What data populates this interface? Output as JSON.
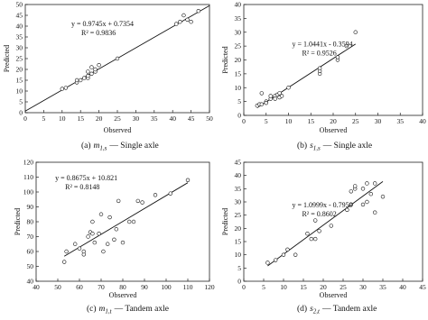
{
  "chart_data": [
    {
      "type": "scatter",
      "xlabel": "Observed",
      "ylabel": "Predicted",
      "caption": {
        "label": "(a)",
        "symbol": "m",
        "subscript": "1,s",
        "text": "— Single axle"
      },
      "equation": "y = 0.9745x + 0.7354",
      "r2": "R² = 0.9836",
      "fit": {
        "slope": 0.9745,
        "intercept": 0.7354
      },
      "x": [
        10,
        11,
        14,
        14,
        15,
        16,
        17,
        17,
        17,
        18,
        18,
        19,
        19,
        20,
        25,
        41,
        42,
        43,
        44,
        45,
        47
      ],
      "y": [
        11,
        11.5,
        14,
        15,
        15,
        16,
        16,
        17,
        19,
        18,
        21,
        19,
        20,
        22,
        25,
        41,
        42,
        45,
        43,
        42,
        47
      ],
      "xlim": [
        0,
        50
      ],
      "ylim": [
        0,
        50
      ],
      "xticks": [
        0,
        5,
        10,
        15,
        20,
        25,
        30,
        35,
        40,
        45,
        50
      ],
      "yticks": [
        0,
        5,
        10,
        15,
        20,
        25,
        30,
        35,
        40,
        45,
        50
      ]
    },
    {
      "type": "scatter",
      "xlabel": "Observed",
      "ylabel": "Predicted",
      "caption": {
        "label": "(b)",
        "symbol": "s",
        "subscript": "1,s",
        "text": "— Single axle"
      },
      "equation": "y = 1.0441x - 0.3594",
      "r2": "R² = 0.9526",
      "fit": {
        "slope": 1.0441,
        "intercept": -0.3594
      },
      "x": [
        3,
        3.5,
        4,
        4,
        5,
        5,
        6,
        6,
        7,
        7,
        7.5,
        8,
        8,
        8.5,
        10,
        17,
        17,
        17,
        21,
        21,
        23,
        25
      ],
      "y": [
        3.5,
        4,
        4,
        8,
        5,
        4.5,
        6,
        7,
        7,
        6,
        7.5,
        8,
        6.5,
        7,
        10,
        15,
        16,
        17,
        20,
        21,
        25,
        30
      ],
      "xlim": [
        0,
        40
      ],
      "ylim": [
        0,
        40
      ],
      "xticks": [
        0,
        5,
        10,
        15,
        20,
        25,
        30,
        35,
        40
      ],
      "yticks": [
        0,
        5,
        10,
        15,
        20,
        25,
        30,
        35,
        40
      ]
    },
    {
      "type": "scatter",
      "xlabel": "Observed",
      "ylabel": "Predicted",
      "caption": {
        "label": "(c)",
        "symbol": "m",
        "subscript": "1,t",
        "text": "— Tandem axle"
      },
      "equation": "y = 0.8675x + 10.821",
      "r2": "R² = 0.8148",
      "fit": {
        "slope": 0.8675,
        "intercept": 10.821
      },
      "x": [
        53,
        54,
        58,
        60,
        62,
        62,
        64,
        65,
        66,
        66,
        67,
        69,
        70,
        71,
        73,
        74,
        76,
        77,
        78,
        80,
        83,
        85,
        87,
        89,
        95,
        102,
        110
      ],
      "y": [
        53,
        60,
        65,
        62,
        58,
        60,
        70,
        73,
        72,
        80,
        66,
        72,
        85,
        60,
        65,
        83,
        68,
        75,
        94,
        66,
        80,
        80,
        94,
        93,
        98,
        99,
        108
      ],
      "xlim": [
        40,
        120
      ],
      "ylim": [
        40,
        120
      ],
      "xticks": [
        40,
        50,
        60,
        70,
        80,
        90,
        100,
        110,
        120
      ],
      "yticks": [
        40,
        50,
        60,
        70,
        80,
        90,
        100,
        110,
        120
      ]
    },
    {
      "type": "scatter",
      "xlabel": "Observed",
      "ylabel": "Predicted",
      "caption": {
        "label": "(d)",
        "symbol": "s",
        "subscript": "2,t",
        "text": "— Tandem axle"
      },
      "equation": "y = 1.0999x - 0.7959",
      "r2": "R² = 0.8602",
      "fit": {
        "slope": 1.0999,
        "intercept": -0.7959
      },
      "x": [
        6,
        8,
        10,
        11,
        13,
        16,
        17,
        18,
        18,
        19,
        22,
        26,
        27,
        27,
        28,
        28,
        30,
        30,
        31,
        31,
        32,
        33,
        33,
        35
      ],
      "y": [
        7,
        8,
        10,
        12,
        10,
        18,
        16,
        16,
        23,
        19,
        21,
        27,
        29,
        34,
        35,
        36,
        29,
        35,
        37,
        30,
        33,
        37,
        26,
        32
      ],
      "xlim": [
        0,
        45
      ],
      "ylim": [
        0,
        45
      ],
      "xticks": [
        0,
        5,
        10,
        15,
        20,
        25,
        30,
        35,
        40,
        45
      ],
      "yticks": [
        0,
        5,
        10,
        15,
        20,
        25,
        30,
        35,
        40,
        45
      ]
    }
  ]
}
